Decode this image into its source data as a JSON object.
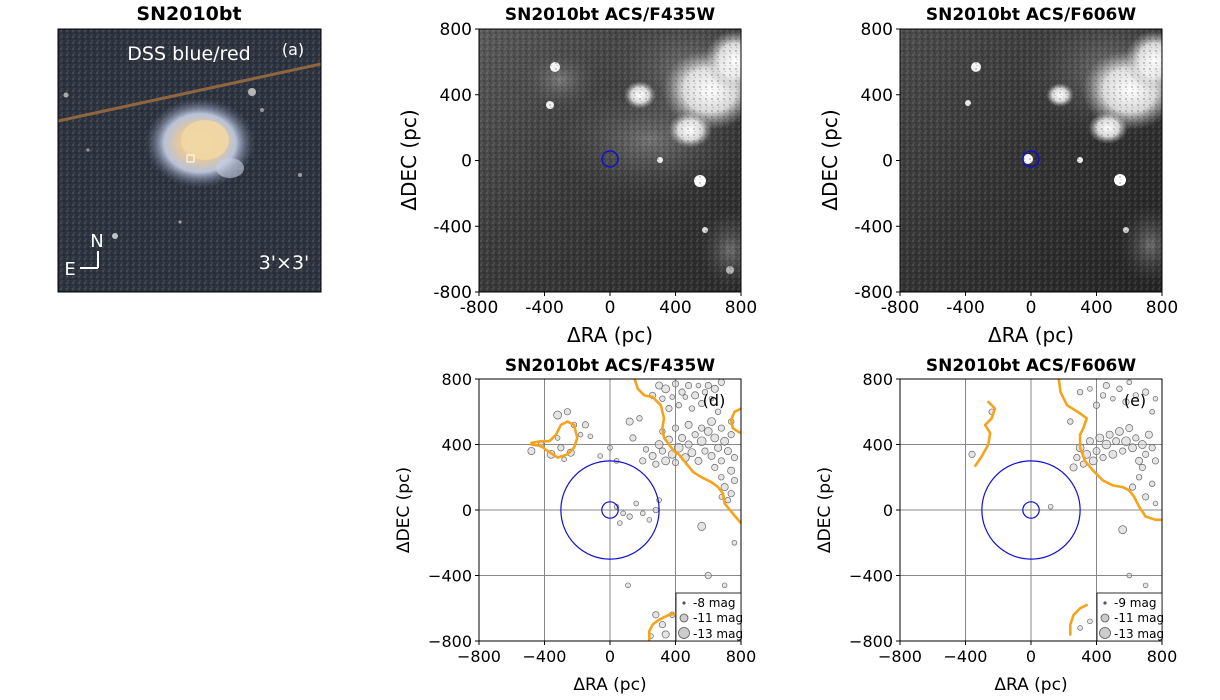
{
  "figure": {
    "panels": [
      {
        "id": "a",
        "type": "image",
        "title": "SN2010bt",
        "label": "DSS blue/red",
        "tag": "(a)",
        "scale_label": "3'×3'",
        "compass": {
          "north": "N",
          "east": "E"
        }
      },
      {
        "id": "b",
        "type": "image",
        "title": "SN2010bt ACS/F435W",
        "xlabel": "ΔRA (pc)",
        "ylabel": "ΔDEC (pc)"
      },
      {
        "id": "c",
        "type": "image",
        "title": "SN2010bt ACS/F606W",
        "xlabel": "ΔRA (pc)",
        "ylabel": "ΔDEC (pc)"
      },
      {
        "id": "d",
        "type": "scatter",
        "title": "SN2010bt ACS/F435W",
        "tag": "(d)",
        "xlabel": "ΔRA (pc)",
        "ylabel": "ΔDEC (pc)",
        "legend": [
          "-8 mag",
          "-11 mag",
          "-13 mag"
        ]
      },
      {
        "id": "e",
        "type": "scatter",
        "title": "SN2010bt ACS/F606W",
        "tag": "(e)",
        "xlabel": "ΔRA (pc)",
        "ylabel": "ΔDEC (pc)",
        "legend": [
          "-9 mag",
          "-11 mag",
          "-13 mag"
        ]
      }
    ]
  },
  "chart_data": [
    {
      "type": "image",
      "panel": "b",
      "title": "SN2010bt ACS/F435W",
      "xlim": [
        -800,
        800
      ],
      "ylim": [
        -800,
        800
      ],
      "xticks": [
        "-800",
        "-400",
        "0",
        "400",
        "800"
      ],
      "yticks": [
        "-800",
        "-400",
        "0",
        "400",
        "800"
      ],
      "marker": {
        "x": 0,
        "y": 0,
        "radius_pc": 50,
        "color": "#1010d0"
      }
    },
    {
      "type": "image",
      "panel": "c",
      "title": "SN2010bt ACS/F606W",
      "xlim": [
        -800,
        800
      ],
      "ylim": [
        -800,
        800
      ],
      "xticks": [
        "-800",
        "-400",
        "0",
        "400",
        "800"
      ],
      "yticks": [
        "-800",
        "-400",
        "0",
        "400",
        "800"
      ],
      "marker": {
        "x": 0,
        "y": 0,
        "radius_pc": 50,
        "color": "#1010d0"
      }
    },
    {
      "type": "scatter",
      "panel": "d",
      "title": "SN2010bt ACS/F435W",
      "xlim": [
        -800,
        800
      ],
      "ylim": [
        -800,
        800
      ],
      "xticks": [
        "−800",
        "−400",
        "0",
        "400",
        "800"
      ],
      "yticks": [
        "−800",
        "−400",
        "0",
        "400",
        "800"
      ],
      "grid": true,
      "legend_position": "lower-right",
      "circles_pc": [
        50,
        300
      ],
      "circle_color": "#1010d0",
      "contour_color": "#f5a31a",
      "points": [
        [
          -480,
          360,
          -10.5
        ],
        [
          -420,
          400,
          -9.5
        ],
        [
          -360,
          340,
          -11
        ],
        [
          -320,
          440,
          -9
        ],
        [
          -300,
          380,
          -10
        ],
        [
          -280,
          310,
          -9
        ],
        [
          -240,
          350,
          -10.5
        ],
        [
          -320,
          580,
          -11
        ],
        [
          -260,
          600,
          -10
        ],
        [
          -220,
          520,
          -9.5
        ],
        [
          -180,
          460,
          -9
        ],
        [
          -150,
          520,
          -10
        ],
        [
          -120,
          450,
          -9
        ],
        [
          -60,
          330,
          -9
        ],
        [
          0,
          380,
          -9
        ],
        [
          40,
          300,
          -9
        ],
        [
          120,
          540,
          -10.5
        ],
        [
          140,
          440,
          -10
        ],
        [
          180,
          560,
          -9.5
        ],
        [
          200,
          300,
          -10
        ],
        [
          220,
          370,
          -9.5
        ],
        [
          260,
          700,
          -10
        ],
        [
          300,
          760,
          -10.5
        ],
        [
          320,
          680,
          -9.5
        ],
        [
          340,
          740,
          -11
        ],
        [
          360,
          620,
          -10
        ],
        [
          380,
          690,
          -9
        ],
        [
          400,
          770,
          -10
        ],
        [
          420,
          640,
          -9.5
        ],
        [
          440,
          720,
          -10
        ],
        [
          460,
          690,
          -9
        ],
        [
          480,
          760,
          -10
        ],
        [
          500,
          620,
          -9.5
        ],
        [
          520,
          700,
          -10.5
        ],
        [
          540,
          760,
          -9
        ],
        [
          560,
          650,
          -10
        ],
        [
          580,
          720,
          -9.5
        ],
        [
          600,
          760,
          -10
        ],
        [
          620,
          680,
          -9
        ],
        [
          640,
          740,
          -10.5
        ],
        [
          660,
          600,
          -9.5
        ],
        [
          680,
          780,
          -10
        ],
        [
          260,
          330,
          -10.5
        ],
        [
          280,
          280,
          -10
        ],
        [
          300,
          400,
          -11
        ],
        [
          320,
          360,
          -10
        ],
        [
          340,
          300,
          -11
        ],
        [
          360,
          430,
          -10.5
        ],
        [
          380,
          340,
          -11
        ],
        [
          400,
          290,
          -10
        ],
        [
          420,
          380,
          -11.5
        ],
        [
          440,
          440,
          -10.5
        ],
        [
          460,
          320,
          -11
        ],
        [
          480,
          400,
          -10.5
        ],
        [
          500,
          350,
          -11
        ],
        [
          520,
          460,
          -10
        ],
        [
          540,
          300,
          -10.5
        ],
        [
          560,
          420,
          -11.5
        ],
        [
          580,
          360,
          -10
        ],
        [
          600,
          480,
          -11
        ],
        [
          620,
          330,
          -10.5
        ],
        [
          640,
          440,
          -11
        ],
        [
          660,
          380,
          -10.5
        ],
        [
          680,
          300,
          -10
        ],
        [
          700,
          420,
          -11
        ],
        [
          720,
          360,
          -10.5
        ],
        [
          740,
          460,
          -10
        ],
        [
          760,
          320,
          -10
        ],
        [
          320,
          480,
          -9.5
        ],
        [
          400,
          500,
          -10
        ],
        [
          480,
          520,
          -10.5
        ],
        [
          560,
          500,
          -10
        ],
        [
          620,
          540,
          -11
        ],
        [
          680,
          500,
          -10
        ],
        [
          740,
          540,
          -9.5
        ],
        [
          640,
          260,
          -10
        ],
        [
          680,
          200,
          -9.5
        ],
        [
          700,
          140,
          -10.5
        ],
        [
          740,
          100,
          -10
        ],
        [
          720,
          60,
          -9.5
        ],
        [
          760,
          180,
          -10
        ],
        [
          680,
          80,
          -9
        ],
        [
          740,
          240,
          -10.5
        ],
        [
          40,
          20,
          -9
        ],
        [
          80,
          -20,
          -9
        ],
        [
          120,
          -40,
          -9.5
        ],
        [
          160,
          40,
          -9
        ],
        [
          200,
          -20,
          -9
        ],
        [
          240,
          -60,
          -9
        ],
        [
          280,
          0,
          -9.5
        ],
        [
          300,
          60,
          -9
        ],
        [
          60,
          -80,
          -9
        ],
        [
          560,
          -100,
          -11
        ],
        [
          760,
          -200,
          -9
        ],
        [
          110,
          -460,
          -9
        ],
        [
          600,
          -400,
          -10
        ],
        [
          700,
          -460,
          -9
        ],
        [
          280,
          -640,
          -10
        ],
        [
          320,
          -700,
          -10
        ],
        [
          340,
          -760,
          -10.5
        ],
        [
          380,
          -640,
          -9.5
        ],
        [
          420,
          -720,
          -10
        ],
        [
          250,
          -770,
          -9
        ]
      ],
      "contours": [
        [
          [
            -480,
            400
          ],
          [
            -420,
            390
          ],
          [
            -380,
            360
          ],
          [
            -320,
            320
          ],
          [
            -260,
            340
          ],
          [
            -220,
            380
          ],
          [
            -200,
            440
          ],
          [
            -220,
            520
          ],
          [
            -260,
            540
          ],
          [
            -300,
            520
          ],
          [
            -330,
            460
          ],
          [
            -370,
            420
          ],
          [
            -420,
            420
          ],
          [
            -480,
            410
          ]
        ],
        [
          [
            150,
            800
          ],
          [
            170,
            740
          ],
          [
            210,
            700
          ],
          [
            260,
            690
          ],
          [
            310,
            640
          ],
          [
            330,
            560
          ],
          [
            320,
            500
          ],
          [
            330,
            440
          ],
          [
            360,
            400
          ],
          [
            390,
            360
          ],
          [
            420,
            340
          ],
          [
            460,
            290
          ],
          [
            510,
            230
          ],
          [
            560,
            200
          ],
          [
            620,
            170
          ],
          [
            660,
            140
          ],
          [
            690,
            100
          ],
          [
            700,
            40
          ],
          [
            740,
            -10
          ],
          [
            800,
            -80
          ]
        ],
        [
          [
            800,
            620
          ],
          [
            760,
            600
          ],
          [
            740,
            550
          ],
          [
            750,
            500
          ],
          [
            780,
            480
          ],
          [
            800,
            470
          ]
        ],
        [
          [
            240,
            -800
          ],
          [
            240,
            -740
          ],
          [
            260,
            -700
          ],
          [
            300,
            -670
          ],
          [
            360,
            -640
          ],
          [
            420,
            -630
          ],
          [
            480,
            -640
          ]
        ]
      ]
    },
    {
      "type": "scatter",
      "panel": "e",
      "title": "SN2010bt ACS/F606W",
      "xlim": [
        -800,
        800
      ],
      "ylim": [
        -800,
        800
      ],
      "xticks": [
        "−800",
        "−400",
        "0",
        "400",
        "800"
      ],
      "yticks": [
        "−800",
        "−400",
        "0",
        "400",
        "800"
      ],
      "grid": true,
      "legend_position": "lower-right",
      "circles_pc": [
        50,
        300
      ],
      "circle_color": "#1010d0",
      "contour_color": "#f5a31a",
      "points": [
        [
          -360,
          340,
          -10
        ],
        [
          -240,
          600,
          -9.5
        ],
        [
          240,
          540,
          -9.5
        ],
        [
          300,
          720,
          -9.5
        ],
        [
          360,
          740,
          -9
        ],
        [
          400,
          640,
          -10
        ],
        [
          440,
          700,
          -9.5
        ],
        [
          460,
          760,
          -10
        ],
        [
          500,
          680,
          -9
        ],
        [
          540,
          740,
          -9.5
        ],
        [
          580,
          660,
          -10
        ],
        [
          600,
          780,
          -9
        ],
        [
          640,
          700,
          -9.5
        ],
        [
          700,
          720,
          -10
        ],
        [
          740,
          600,
          -9
        ],
        [
          760,
          680,
          -9
        ],
        [
          260,
          260,
          -10.5
        ],
        [
          280,
          320,
          -10
        ],
        [
          300,
          380,
          -11
        ],
        [
          320,
          280,
          -10
        ],
        [
          340,
          340,
          -11
        ],
        [
          360,
          420,
          -10.5
        ],
        [
          380,
          300,
          -11
        ],
        [
          400,
          360,
          -10.5
        ],
        [
          420,
          440,
          -11
        ],
        [
          440,
          320,
          -10
        ],
        [
          460,
          400,
          -11.5
        ],
        [
          480,
          460,
          -10.5
        ],
        [
          500,
          340,
          -11
        ],
        [
          520,
          420,
          -10.5
        ],
        [
          540,
          480,
          -11
        ],
        [
          560,
          360,
          -10
        ],
        [
          580,
          420,
          -11.5
        ],
        [
          600,
          500,
          -10.5
        ],
        [
          620,
          380,
          -11
        ],
        [
          640,
          440,
          -10
        ],
        [
          660,
          300,
          -10.5
        ],
        [
          680,
          400,
          -11
        ],
        [
          700,
          340,
          -10
        ],
        [
          720,
          460,
          -10.5
        ],
        [
          740,
          380,
          -10
        ],
        [
          760,
          300,
          -10
        ],
        [
          620,
          140,
          -10
        ],
        [
          660,
          200,
          -9.5
        ],
        [
          700,
          80,
          -10
        ],
        [
          740,
          160,
          -9.5
        ],
        [
          760,
          40,
          -9
        ],
        [
          680,
          260,
          -10
        ],
        [
          120,
          20,
          -9
        ],
        [
          560,
          -120,
          -11
        ],
        [
          600,
          -400,
          -9
        ],
        [
          700,
          -460,
          -9
        ],
        [
          300,
          -720,
          -9
        ],
        [
          360,
          -680,
          -9
        ]
      ],
      "contours": [
        [
          [
            -260,
            660
          ],
          [
            -220,
            620
          ],
          [
            -240,
            560
          ],
          [
            -280,
            520
          ],
          [
            -250,
            470
          ],
          [
            -260,
            400
          ],
          [
            -300,
            330
          ],
          [
            -340,
            270
          ]
        ],
        [
          [
            170,
            800
          ],
          [
            180,
            720
          ],
          [
            220,
            640
          ],
          [
            300,
            590
          ],
          [
            340,
            560
          ],
          [
            320,
            500
          ],
          [
            300,
            460
          ],
          [
            300,
            380
          ],
          [
            330,
            300
          ],
          [
            380,
            240
          ],
          [
            440,
            180
          ],
          [
            500,
            150
          ],
          [
            560,
            140
          ],
          [
            600,
            120
          ],
          [
            630,
            80
          ],
          [
            660,
            20
          ],
          [
            700,
            -40
          ],
          [
            760,
            -60
          ],
          [
            800,
            -60
          ]
        ],
        [
          [
            240,
            -760
          ],
          [
            240,
            -700
          ],
          [
            260,
            -640
          ],
          [
            300,
            -600
          ],
          [
            340,
            -580
          ]
        ]
      ]
    }
  ]
}
